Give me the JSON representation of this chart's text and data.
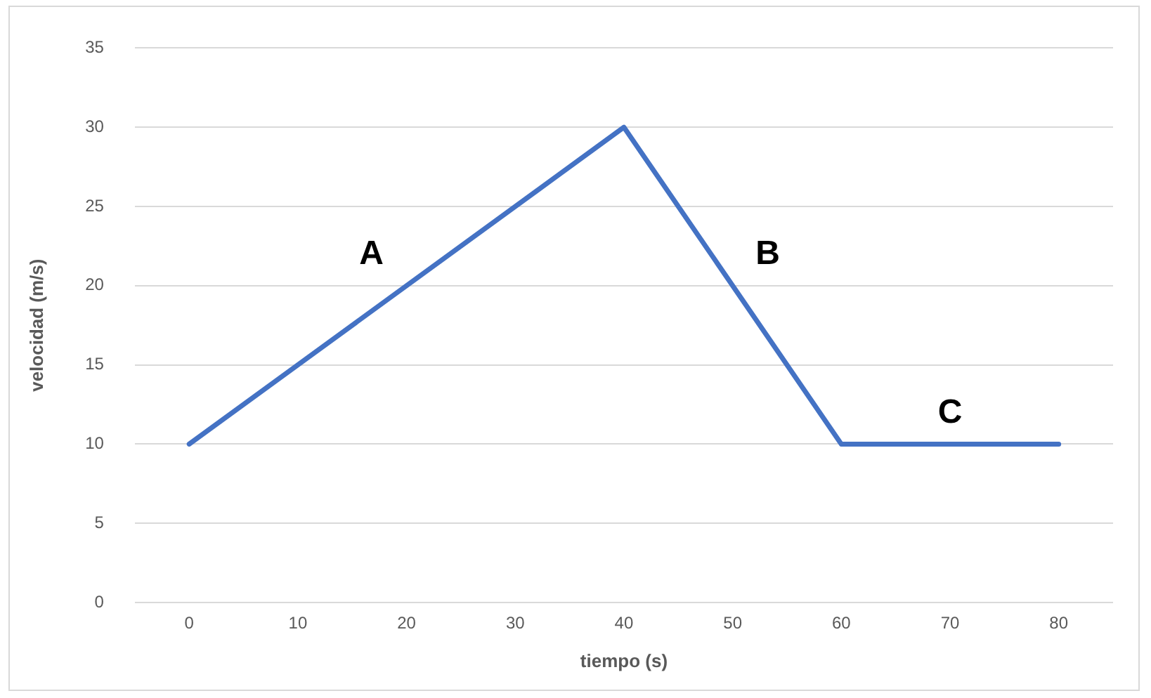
{
  "chart_data": {
    "type": "line",
    "xlabel": "tiempo (s)",
    "ylabel": "velocidad (m/s)",
    "x": [
      0,
      40,
      60,
      80
    ],
    "series": [
      {
        "color": "#4472c4",
        "values": [
          10,
          30,
          10,
          10
        ]
      }
    ],
    "xlim": [
      -5,
      85
    ],
    "xticks": [
      0,
      10,
      20,
      30,
      40,
      50,
      60,
      70,
      80
    ],
    "ylim": [
      0,
      35
    ],
    "yticks": [
      0,
      5,
      10,
      15,
      20,
      25,
      30,
      35
    ],
    "grid": "y",
    "legend": false,
    "marker": "none",
    "line_style": "solid",
    "annotations": [
      "A",
      "B",
      "C"
    ]
  }
}
